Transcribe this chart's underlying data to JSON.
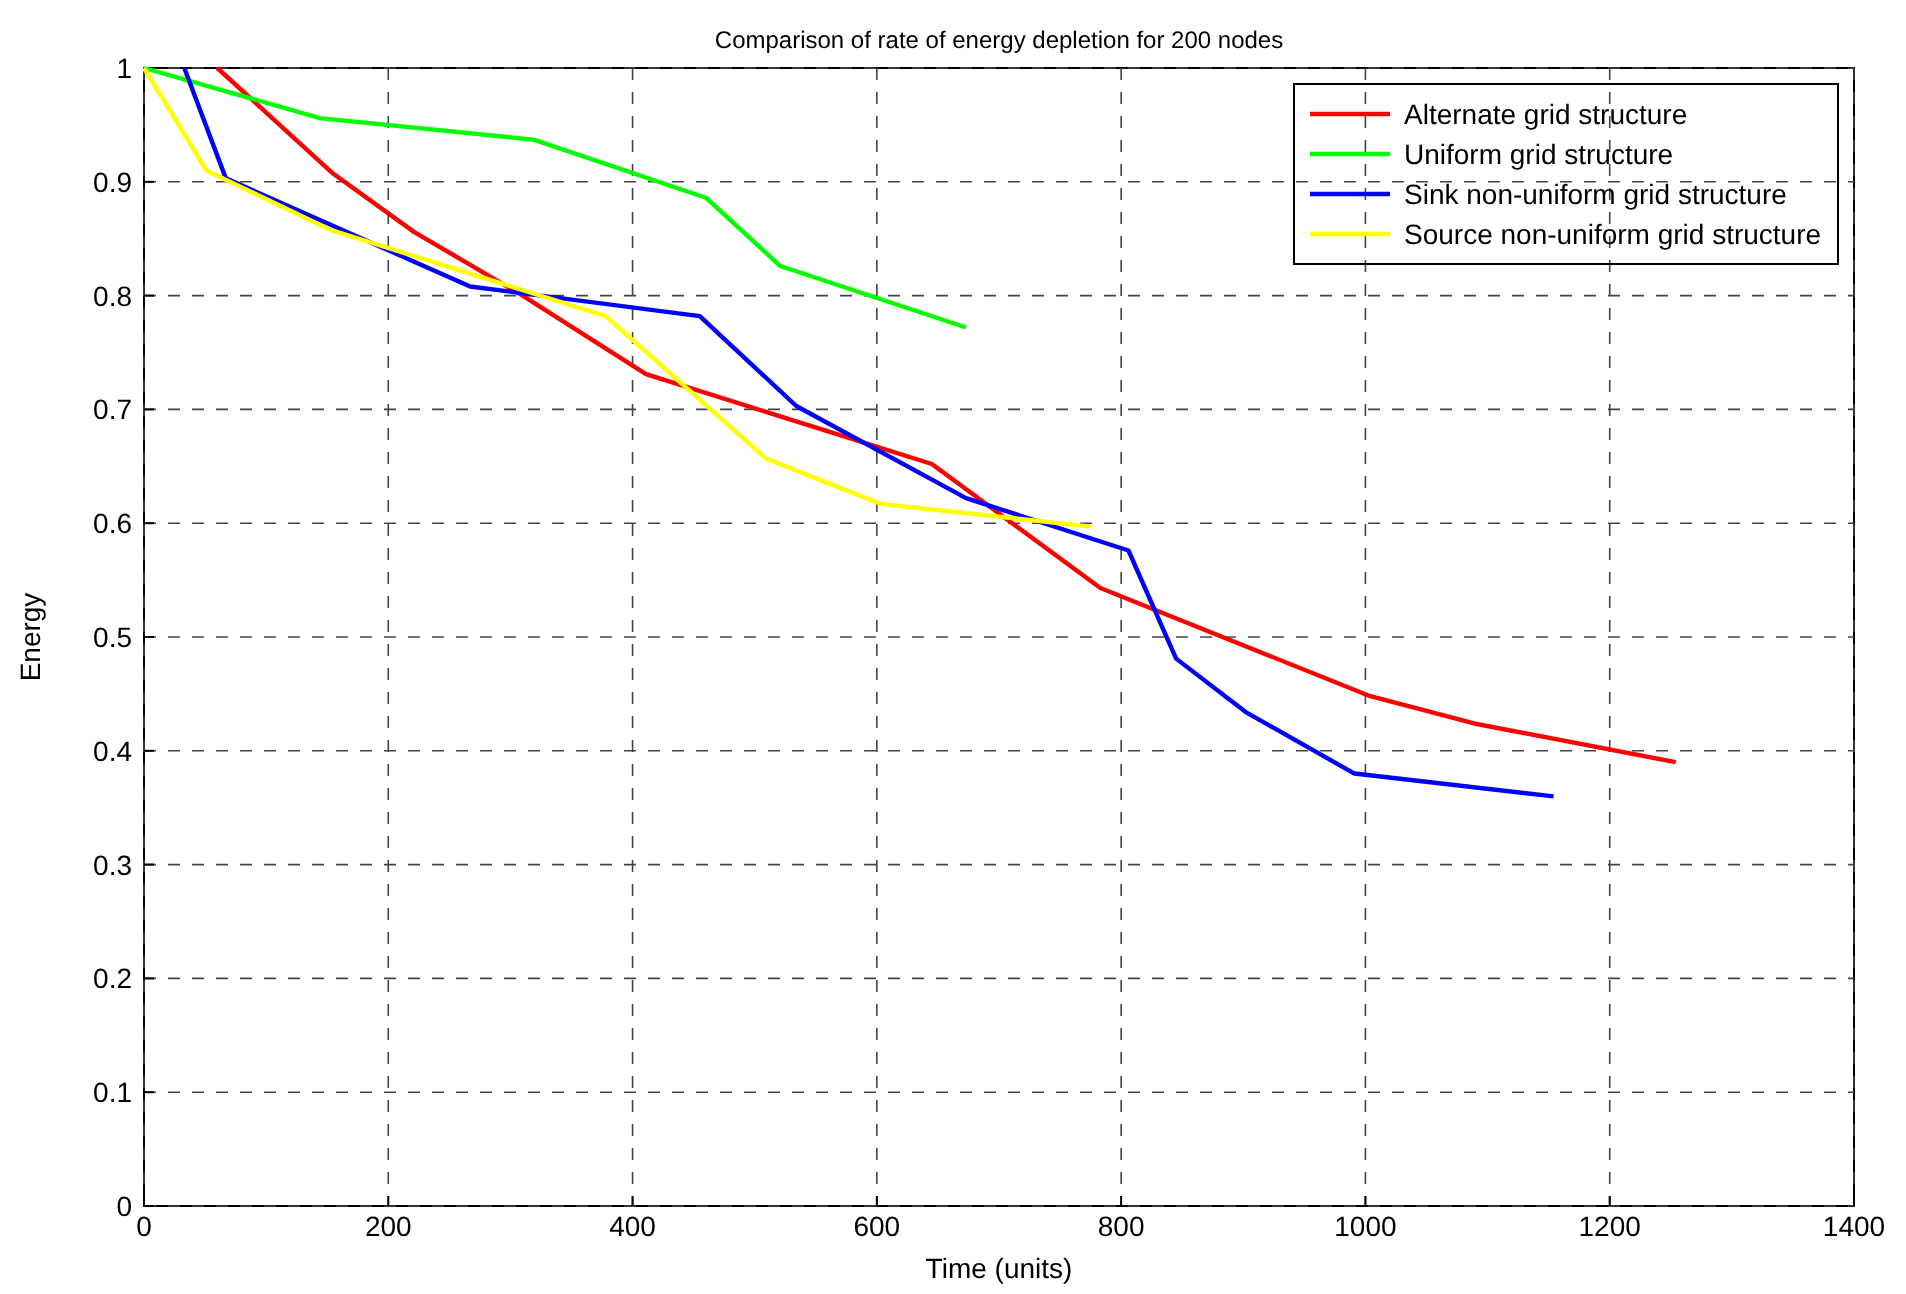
{
  "chart_data": {
    "type": "line",
    "title": "Comparison of rate of energy depletion for 200 nodes",
    "xlabel": "Time (units)",
    "ylabel": "Energy",
    "xlim": [
      0,
      1400
    ],
    "xticks": [
      0,
      200,
      400,
      600,
      800,
      1000,
      1200,
      1400
    ],
    "ylim": [
      0,
      1
    ],
    "yticks": [
      0,
      0.1,
      0.2,
      0.3,
      0.4,
      0.5,
      0.6,
      0.7,
      0.8,
      0.9,
      1
    ],
    "grid": true,
    "legend": "top right",
    "line_style": "solid",
    "series": [
      {
        "name": "Alternate grid structure",
        "color": "#ff0000",
        "x": [
          60,
          155,
          221,
          310,
          411,
          645,
          783,
          1004,
          1089,
          1254
        ],
        "values": [
          1,
          0.907,
          0.856,
          0.8,
          0.731,
          0.652,
          0.543,
          0.448,
          0.424,
          0.39
        ]
      },
      {
        "name": "Uniform grid structure",
        "color": "#00ff00",
        "x": [
          0,
          144,
          319,
          460,
          521,
          673
        ],
        "values": [
          1,
          0.956,
          0.937,
          0.886,
          0.826,
          0.772
        ]
      },
      {
        "name": "Sink non-uniform grid structure",
        "color": "#0000ff",
        "x": [
          33,
          67,
          267,
          455,
          534,
          673,
          806,
          845,
          902,
          991,
          1154
        ],
        "values": [
          1,
          0.903,
          0.808,
          0.782,
          0.703,
          0.622,
          0.576,
          0.481,
          0.434,
          0.38,
          0.36
        ]
      },
      {
        "name": "Source non-uniform grid structure",
        "color": "#ffff00",
        "x": [
          0,
          51,
          152,
          378,
          509,
          603,
          775
        ],
        "values": [
          1,
          0.91,
          0.858,
          0.782,
          0.657,
          0.617,
          0.597
        ]
      }
    ]
  }
}
